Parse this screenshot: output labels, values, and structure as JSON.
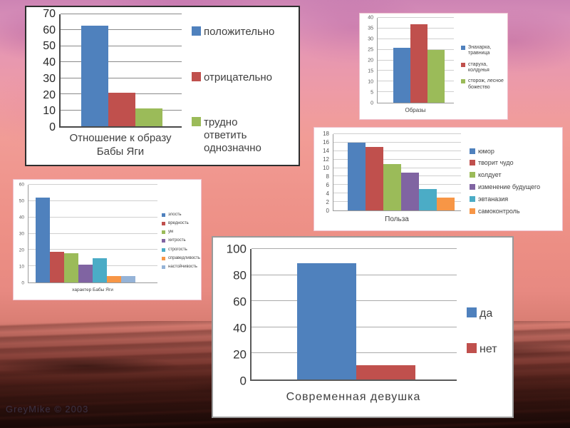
{
  "slide": {
    "watermark": "GreyMike © 2003"
  },
  "colors": {
    "blue": "#4F81BD",
    "red": "#C0504D",
    "green": "#9BBB59",
    "purple": "#8064A2",
    "teal": "#4BACC6",
    "orange": "#F79646",
    "light_blue": "#95B3D7"
  },
  "chart_data": [
    {
      "id": "attitude",
      "type": "bar",
      "xlabel": "Отношение к образу Бабы Яги",
      "series": [
        {
          "name": "положительно",
          "value": 63,
          "color": "#4F81BD"
        },
        {
          "name": "отрицательно",
          "value": 21,
          "color": "#C0504D"
        },
        {
          "name": "трудно ответить однозначно",
          "value": 11,
          "color": "#9BBB59"
        }
      ],
      "ylim": [
        0,
        70
      ],
      "yticks": [
        0,
        10,
        20,
        30,
        40,
        50,
        60,
        70
      ],
      "grid": true,
      "legend_position": "right"
    },
    {
      "id": "images",
      "type": "bar",
      "xlabel": "Образы",
      "series": [
        {
          "name": "Знахарка, травница",
          "value": 26,
          "color": "#4F81BD"
        },
        {
          "name": "старуха, колдунья",
          "value": 37,
          "color": "#C0504D"
        },
        {
          "name": "сторож, лесное божество",
          "value": 25,
          "color": "#9BBB59"
        }
      ],
      "ylim": [
        0,
        40
      ],
      "yticks": [
        0,
        5,
        10,
        15,
        20,
        25,
        30,
        35,
        40
      ],
      "grid": true,
      "legend_position": "right"
    },
    {
      "id": "benefit",
      "type": "bar",
      "xlabel": "Польза",
      "series": [
        {
          "name": "юмор",
          "value": 16,
          "color": "#4F81BD"
        },
        {
          "name": "творит чудо",
          "value": 15,
          "color": "#C0504D"
        },
        {
          "name": "колдует",
          "value": 11,
          "color": "#9BBB59"
        },
        {
          "name": "изменение будущего",
          "value": 9,
          "color": "#8064A2"
        },
        {
          "name": "эвтаназия",
          "value": 5,
          "color": "#4BACC6"
        },
        {
          "name": "самоконтроль",
          "value": 3,
          "color": "#F79646"
        }
      ],
      "ylim": [
        0,
        18
      ],
      "yticks": [
        0,
        2,
        4,
        6,
        8,
        10,
        12,
        14,
        16,
        18
      ],
      "grid": true,
      "legend_position": "right"
    },
    {
      "id": "character",
      "type": "bar",
      "xlabel": "характер Бабы Яги",
      "series": [
        {
          "name": "злость",
          "value": 52,
          "color": "#4F81BD"
        },
        {
          "name": "вредность",
          "value": 19,
          "color": "#C0504D"
        },
        {
          "name": "ум",
          "value": 18,
          "color": "#9BBB59"
        },
        {
          "name": "хитрость",
          "value": 11,
          "color": "#8064A2"
        },
        {
          "name": "строгость",
          "value": 15,
          "color": "#4BACC6"
        },
        {
          "name": "справедливость",
          "value": 4,
          "color": "#F79646"
        },
        {
          "name": "настойчивость",
          "value": 4,
          "color": "#95B3D7"
        }
      ],
      "ylim": [
        0,
        60
      ],
      "yticks": [
        0,
        10,
        20,
        30,
        40,
        50,
        60
      ],
      "grid": true,
      "legend_position": "right"
    },
    {
      "id": "modern-girl",
      "type": "bar",
      "xlabel": "Современная девушка",
      "series": [
        {
          "name": "да",
          "value": 89,
          "color": "#4F81BD"
        },
        {
          "name": "нет",
          "value": 11,
          "color": "#C0504D"
        }
      ],
      "ylim": [
        0,
        100
      ],
      "yticks": [
        0,
        20,
        40,
        60,
        80,
        100
      ],
      "grid": true,
      "legend_position": "right"
    }
  ]
}
